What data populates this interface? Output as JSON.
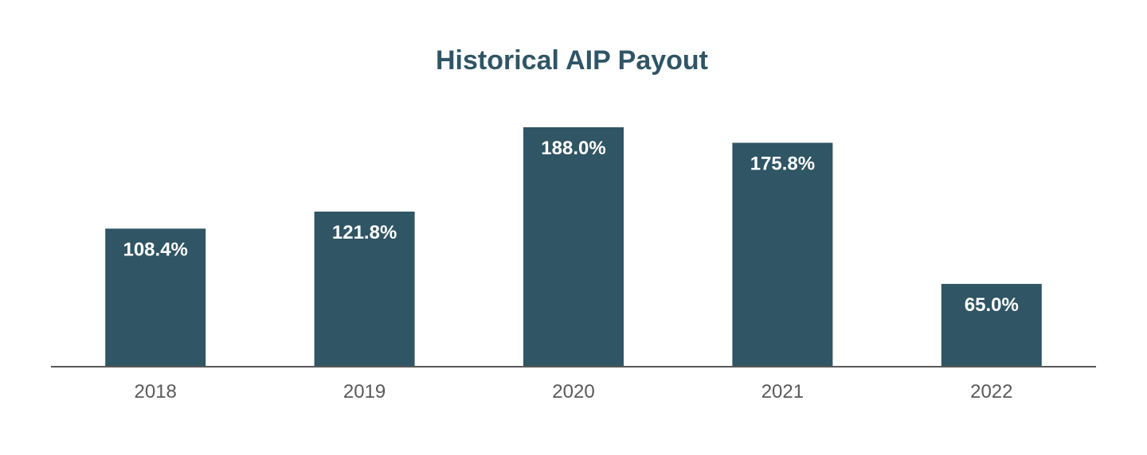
{
  "chart_data": {
    "type": "bar",
    "title": "Historical AIP Payout",
    "xlabel": "",
    "ylabel": "",
    "categories": [
      "2018",
      "2019",
      "2020",
      "2021",
      "2022"
    ],
    "values": [
      108.4,
      121.8,
      188.0,
      175.8,
      65.0
    ],
    "value_labels": [
      "108.4%",
      "121.8%",
      "188.0%",
      "175.8%",
      "65.0%"
    ],
    "unit": "%",
    "ylim": [
      0,
      188.0
    ],
    "grid": false,
    "legend": "none",
    "colors": {
      "bar": "#305564",
      "title": "#2f5566",
      "axis": "#595959",
      "tick_text": "#595959",
      "value_text": "#ffffff"
    }
  }
}
